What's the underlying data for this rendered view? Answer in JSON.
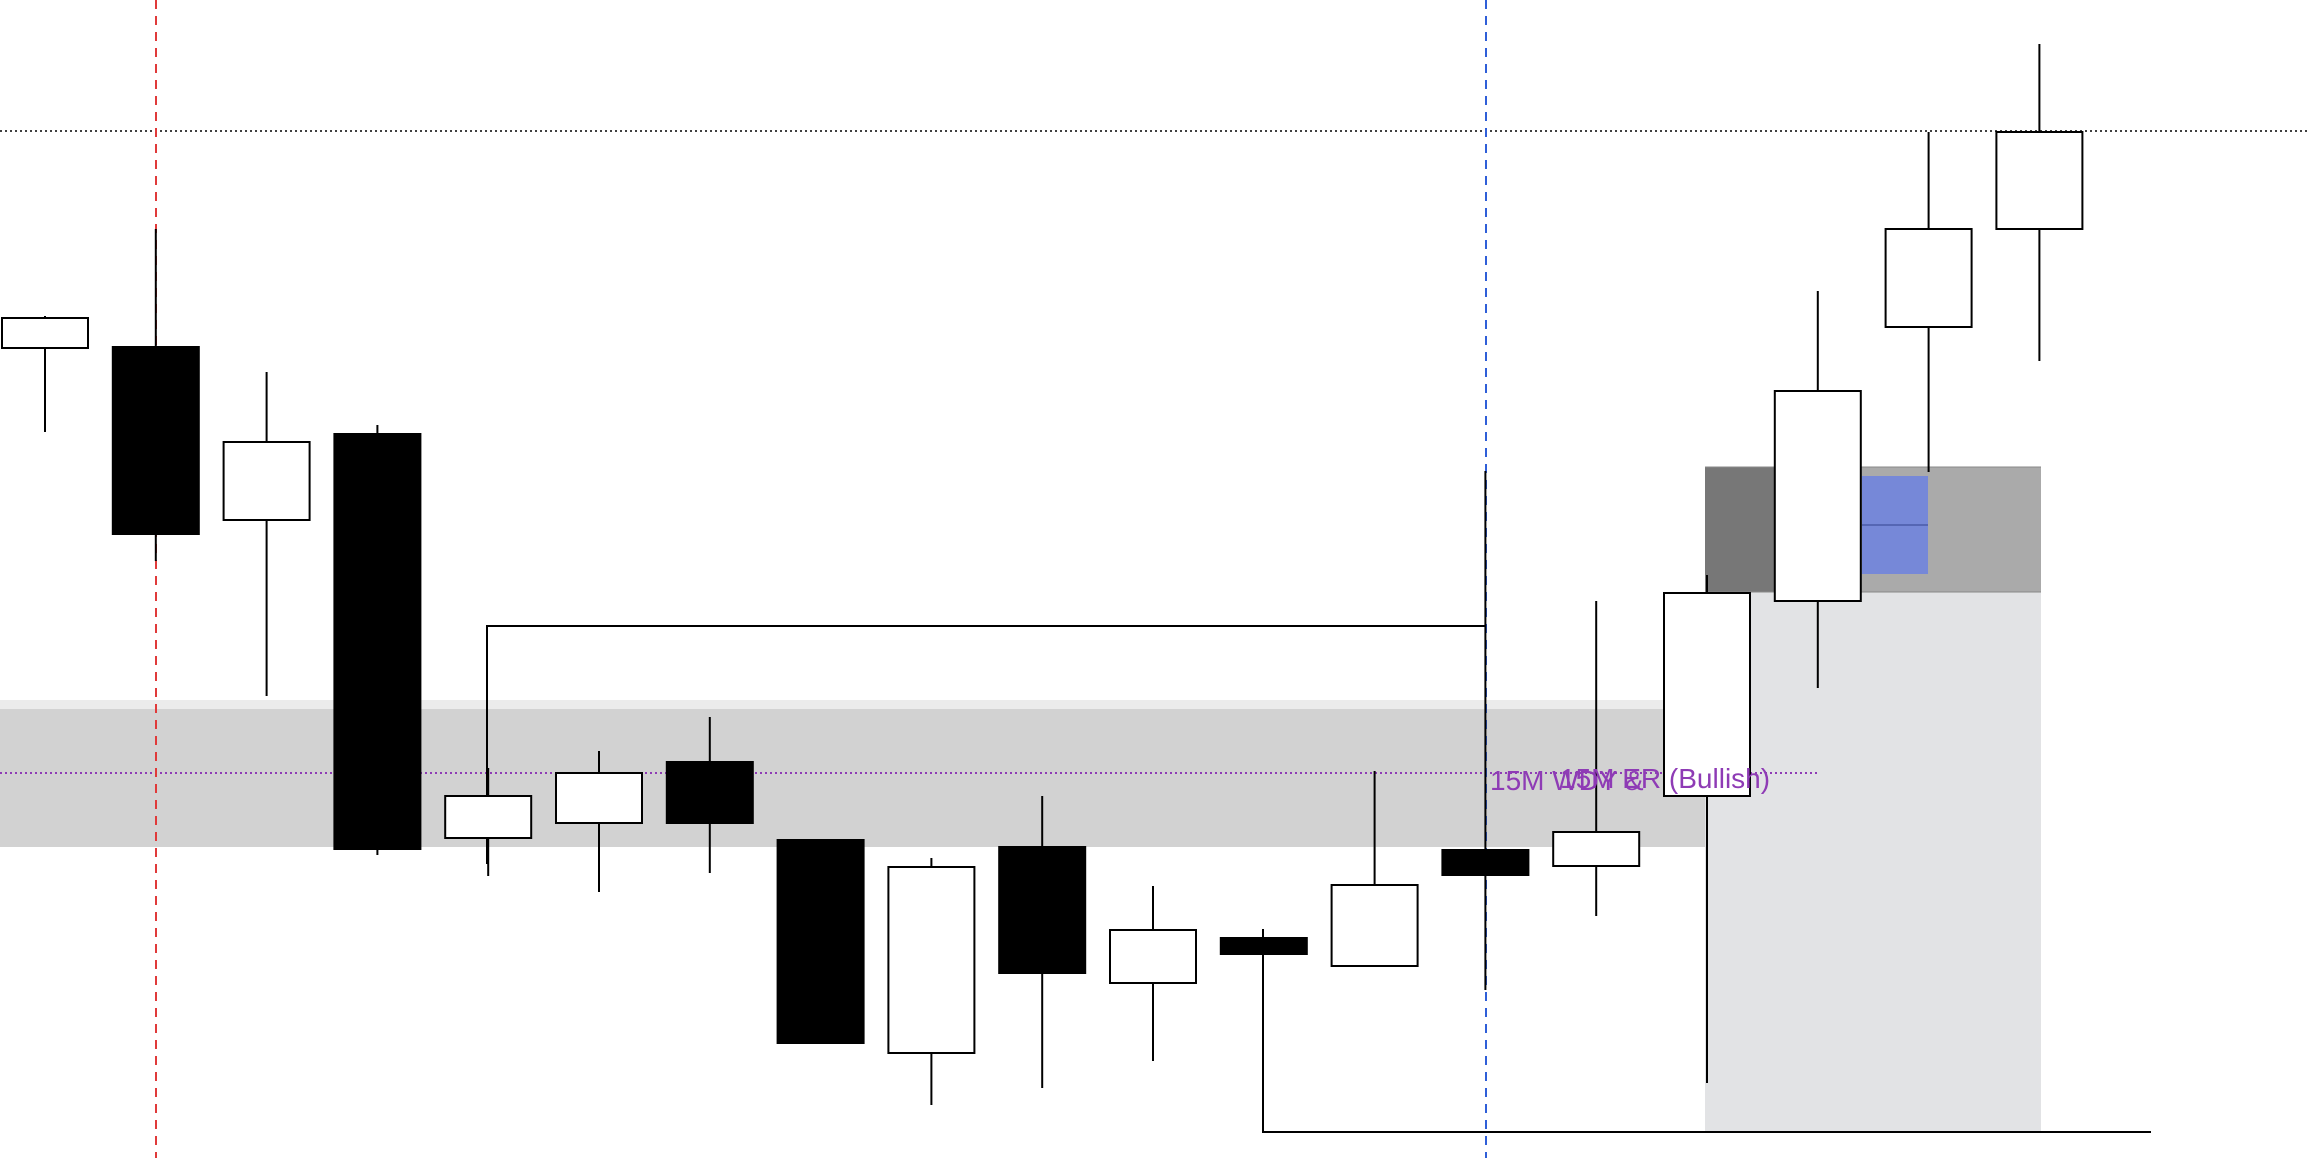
{
  "chart_data": {
    "type": "candlestick",
    "title": "",
    "xlabel": "",
    "ylabel": "",
    "ylim": [
      0,
      1158
    ],
    "colors": {
      "bull_body": "#ffffff",
      "bear_body": "#000000",
      "wick": "#000000",
      "zone_main": "#d2d2d2",
      "zone_top_strip": "#ebebeb",
      "zone_right_dark": "#bdbdbd",
      "lower_box": "#e2e3e5",
      "upper_box": "#aaaaaa",
      "upper_box_left": "#777777",
      "blue_box": "#7688d8",
      "label_purple": "#8e3bb5",
      "session_red": "#e03a3a",
      "session_blue": "#2f5fd8"
    },
    "labels": {
      "zone_label_a": "15M WDY &",
      "zone_label_b": "15M ER (Bullish)"
    },
    "candles": [
      {
        "open": 810,
        "close": 840,
        "high": 842,
        "low": 726
      },
      {
        "open": 811,
        "close": 624,
        "high": 929,
        "low": 597
      },
      {
        "open": 638,
        "close": 716,
        "high": 786,
        "low": 462
      },
      {
        "open": 724,
        "close": 309,
        "high": 733,
        "low": 303
      },
      {
        "open": 320,
        "close": 362,
        "high": 390,
        "low": 282
      },
      {
        "open": 335,
        "close": 385,
        "high": 407,
        "low": 266
      },
      {
        "open": 396,
        "close": 335,
        "high": 441,
        "low": 285
      },
      {
        "open": 318,
        "close": 115,
        "high": 318,
        "low": 115
      },
      {
        "open": 105,
        "close": 291,
        "high": 300,
        "low": 53
      },
      {
        "open": 311,
        "close": 185,
        "high": 362,
        "low": 70
      },
      {
        "open": 175,
        "close": 228,
        "high": 272,
        "low": 97
      },
      {
        "open": 220,
        "close": 204,
        "high": 220,
        "low": 203
      },
      {
        "open": 192,
        "close": 273,
        "high": 387,
        "low": 192
      },
      {
        "open": 308,
        "close": 283,
        "high": 687,
        "low": 168
      },
      {
        "open": 292,
        "close": 326,
        "high": 557,
        "low": 242
      },
      {
        "open": 362,
        "close": 565,
        "high": 583,
        "low": 75
      },
      {
        "open": 557,
        "close": 767,
        "high": 867,
        "low": 470
      },
      {
        "open": 831,
        "close": 929,
        "high": 1026,
        "low": 686
      },
      {
        "open": 929,
        "close": 1026,
        "high": 1114,
        "low": 797
      }
    ]
  }
}
